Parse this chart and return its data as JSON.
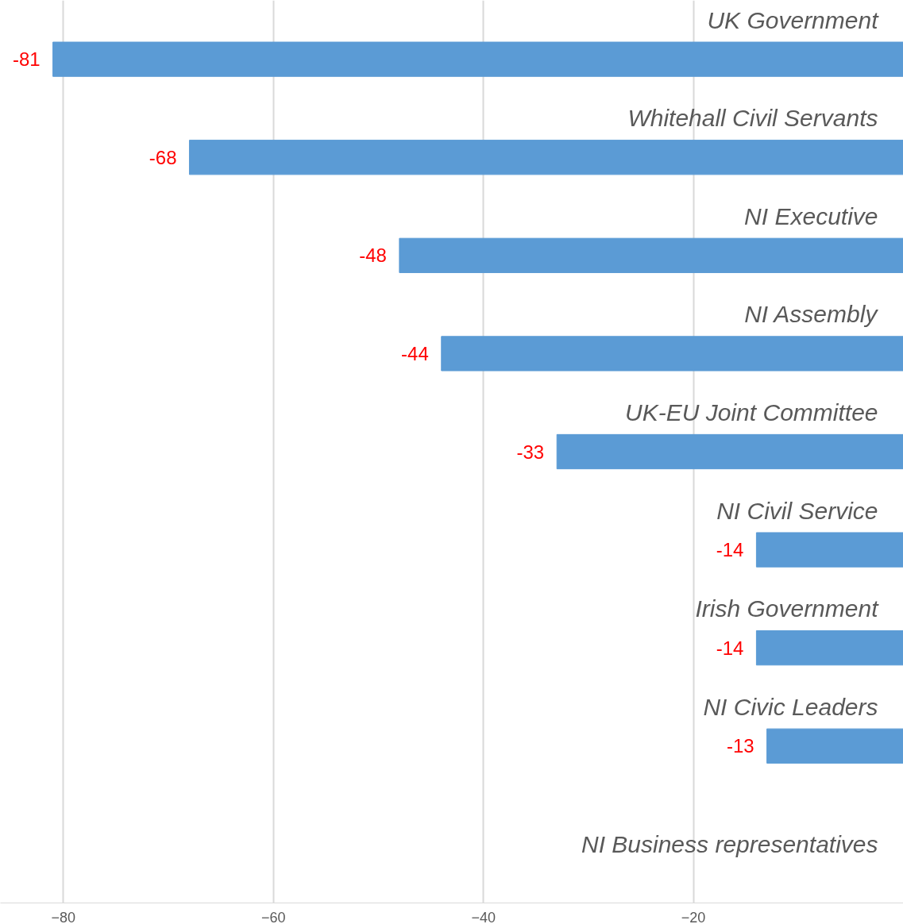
{
  "chart_data": {
    "type": "bar",
    "orientation": "horizontal",
    "categories": [
      "UK Government",
      "Whitehall Civil Servants",
      "NI Executive",
      "NI Assembly",
      "UK-EU Joint Committee",
      "NI Civil Service",
      "Irish Government",
      "NI Civic Leaders",
      "NI Business representatives"
    ],
    "values": [
      -81,
      -68,
      -48,
      -44,
      -33,
      -14,
      -14,
      -13,
      null
    ],
    "color": "#5b9bd5",
    "xlim": [
      -86,
      0
    ],
    "xticks": [
      -80,
      -60,
      -40,
      -20
    ],
    "grid": "x",
    "data_labels": true
  }
}
